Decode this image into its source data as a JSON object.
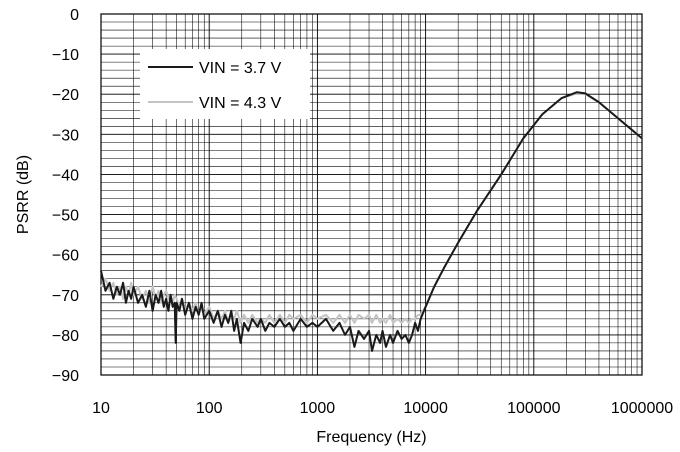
{
  "chart_data": {
    "type": "line",
    "xlabel": "Frequency (Hz)",
    "ylabel": "PSRR (dB)",
    "x_scale": "log",
    "xlim": [
      10,
      1000000
    ],
    "ylim": [
      -90,
      0
    ],
    "grid": true,
    "legend_position": "top-left",
    "x_ticks": [
      10,
      100,
      1000,
      10000,
      100000,
      1000000
    ],
    "x_tick_labels": [
      "10",
      "100",
      "1000",
      "10000",
      "100000",
      "1000000"
    ],
    "y_ticks": [
      0,
      -10,
      -20,
      -30,
      -40,
      -50,
      -60,
      -70,
      -80,
      -90
    ],
    "y_tick_labels": [
      "0",
      "−10",
      "−20",
      "−30",
      "−40",
      "−50",
      "−60",
      "−70",
      "−80",
      "−90"
    ],
    "series": [
      {
        "name": "VIN = 3.7 V",
        "color": "#1a1a1a",
        "points": [
          [
            10,
            -64
          ],
          [
            11,
            -69
          ],
          [
            12,
            -67
          ],
          [
            13,
            -71
          ],
          [
            14,
            -68
          ],
          [
            15,
            -70
          ],
          [
            16,
            -67
          ],
          [
            17,
            -72
          ],
          [
            18,
            -69
          ],
          [
            19,
            -71
          ],
          [
            20,
            -68
          ],
          [
            22,
            -72
          ],
          [
            24,
            -70
          ],
          [
            26,
            -73
          ],
          [
            28,
            -69
          ],
          [
            30,
            -74
          ],
          [
            32,
            -70
          ],
          [
            34,
            -72
          ],
          [
            36,
            -69
          ],
          [
            38,
            -73
          ],
          [
            40,
            -71
          ],
          [
            42,
            -74
          ],
          [
            44,
            -70
          ],
          [
            46,
            -73
          ],
          [
            48,
            -72
          ],
          [
            49,
            -82
          ],
          [
            50,
            -72
          ],
          [
            53,
            -74
          ],
          [
            56,
            -71
          ],
          [
            60,
            -75
          ],
          [
            65,
            -72
          ],
          [
            70,
            -76
          ],
          [
            75,
            -73
          ],
          [
            80,
            -75
          ],
          [
            85,
            -72
          ],
          [
            90,
            -76
          ],
          [
            100,
            -74
          ],
          [
            110,
            -77
          ],
          [
            120,
            -74
          ],
          [
            130,
            -78
          ],
          [
            140,
            -75
          ],
          [
            150,
            -77
          ],
          [
            160,
            -74
          ],
          [
            170,
            -79
          ],
          [
            180,
            -76
          ],
          [
            195,
            -82
          ],
          [
            210,
            -77
          ],
          [
            230,
            -79
          ],
          [
            250,
            -76
          ],
          [
            280,
            -78
          ],
          [
            300,
            -76
          ],
          [
            330,
            -79
          ],
          [
            360,
            -77
          ],
          [
            400,
            -78
          ],
          [
            450,
            -76
          ],
          [
            500,
            -78
          ],
          [
            550,
            -77
          ],
          [
            600,
            -79
          ],
          [
            700,
            -76
          ],
          [
            800,
            -78
          ],
          [
            900,
            -77
          ],
          [
            1000,
            -78
          ],
          [
            1200,
            -76
          ],
          [
            1400,
            -79
          ],
          [
            1600,
            -77
          ],
          [
            1800,
            -80
          ],
          [
            2000,
            -78
          ],
          [
            2200,
            -83
          ],
          [
            2400,
            -79
          ],
          [
            2700,
            -81
          ],
          [
            3000,
            -79
          ],
          [
            3200,
            -84
          ],
          [
            3500,
            -80
          ],
          [
            3800,
            -82
          ],
          [
            4000,
            -79
          ],
          [
            4300,
            -83
          ],
          [
            4700,
            -80
          ],
          [
            5000,
            -82
          ],
          [
            5500,
            -79
          ],
          [
            6000,
            -81
          ],
          [
            6500,
            -80
          ],
          [
            7000,
            -82
          ],
          [
            7500,
            -80
          ],
          [
            8000,
            -77
          ],
          [
            8500,
            -79
          ],
          [
            9000,
            -76
          ],
          [
            10000,
            -73
          ],
          [
            12000,
            -68
          ],
          [
            15000,
            -63
          ],
          [
            20000,
            -57
          ],
          [
            30000,
            -49
          ],
          [
            50000,
            -40
          ],
          [
            80000,
            -31
          ],
          [
            120000,
            -25
          ],
          [
            180000,
            -21
          ],
          [
            250000,
            -19.5
          ],
          [
            300000,
            -19.8
          ],
          [
            400000,
            -22
          ],
          [
            600000,
            -26
          ],
          [
            1000000,
            -31
          ]
        ]
      },
      {
        "name": "VIN = 4.3 V",
        "color": "#c4c4c4",
        "points": [
          [
            10,
            -68
          ],
          [
            11,
            -66
          ],
          [
            12,
            -69
          ],
          [
            13,
            -67
          ],
          [
            14,
            -70
          ],
          [
            15,
            -68
          ],
          [
            16,
            -71
          ],
          [
            17,
            -68
          ],
          [
            18,
            -70
          ],
          [
            19,
            -67
          ],
          [
            20,
            -70
          ],
          [
            22,
            -68
          ],
          [
            24,
            -71
          ],
          [
            26,
            -69
          ],
          [
            28,
            -72
          ],
          [
            30,
            -68
          ],
          [
            32,
            -71
          ],
          [
            34,
            -69
          ],
          [
            36,
            -72
          ],
          [
            38,
            -70
          ],
          [
            40,
            -69
          ],
          [
            42,
            -71
          ],
          [
            44,
            -70
          ],
          [
            46,
            -72
          ],
          [
            48,
            -70
          ],
          [
            50,
            -71
          ],
          [
            53,
            -73
          ],
          [
            56,
            -71
          ],
          [
            60,
            -74
          ],
          [
            65,
            -72
          ],
          [
            70,
            -74
          ],
          [
            75,
            -72
          ],
          [
            80,
            -75
          ],
          [
            85,
            -73
          ],
          [
            90,
            -75
          ],
          [
            100,
            -73
          ],
          [
            110,
            -76
          ],
          [
            120,
            -74
          ],
          [
            130,
            -76
          ],
          [
            140,
            -74
          ],
          [
            150,
            -77
          ],
          [
            160,
            -75
          ],
          [
            170,
            -76
          ],
          [
            180,
            -74
          ],
          [
            195,
            -77
          ],
          [
            210,
            -75
          ],
          [
            230,
            -77
          ],
          [
            250,
            -75
          ],
          [
            280,
            -77
          ],
          [
            300,
            -76
          ],
          [
            330,
            -77
          ],
          [
            360,
            -75
          ],
          [
            400,
            -77
          ],
          [
            450,
            -75
          ],
          [
            500,
            -77
          ],
          [
            550,
            -75
          ],
          [
            600,
            -76
          ],
          [
            700,
            -75
          ],
          [
            800,
            -77
          ],
          [
            900,
            -75
          ],
          [
            1000,
            -76
          ],
          [
            1200,
            -75
          ],
          [
            1400,
            -77
          ],
          [
            1600,
            -75
          ],
          [
            1800,
            -77
          ],
          [
            2000,
            -75
          ],
          [
            2200,
            -77
          ],
          [
            2400,
            -75
          ],
          [
            2700,
            -76
          ],
          [
            3000,
            -75
          ],
          [
            3200,
            -77
          ],
          [
            3500,
            -75
          ],
          [
            3800,
            -77
          ],
          [
            4000,
            -76
          ],
          [
            4300,
            -77
          ],
          [
            4700,
            -75
          ],
          [
            5000,
            -77
          ],
          [
            5500,
            -76
          ],
          [
            6000,
            -77
          ],
          [
            6500,
            -76
          ],
          [
            7000,
            -77
          ],
          [
            7500,
            -76
          ],
          [
            8000,
            -76
          ],
          [
            8500,
            -75
          ],
          [
            9000,
            -75
          ],
          [
            10000,
            -73
          ],
          [
            12000,
            -68
          ],
          [
            15000,
            -63
          ],
          [
            20000,
            -57
          ],
          [
            30000,
            -49
          ],
          [
            50000,
            -40
          ],
          [
            80000,
            -31
          ],
          [
            120000,
            -25
          ],
          [
            180000,
            -21
          ],
          [
            250000,
            -19.8
          ],
          [
            300000,
            -20
          ],
          [
            400000,
            -22
          ],
          [
            600000,
            -26
          ],
          [
            1000000,
            -31
          ]
        ]
      }
    ]
  }
}
